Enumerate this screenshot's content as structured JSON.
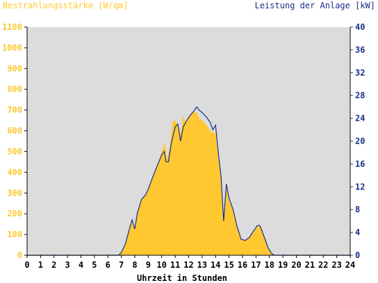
{
  "colors": {
    "irradiance": "#ffc830",
    "power": "#1a2f8a",
    "plot_background": "#dcdcdc",
    "axis": "#000000"
  },
  "chart_data": {
    "type": "area",
    "y_left_label": "Bestrahlungsstärke [W/qm]",
    "y_right_label": "Leistung der Anlage [kW]",
    "x_label": "Uhrzeit in Stunden",
    "x_range": [
      0,
      24
    ],
    "y_left_range": [
      0,
      1100
    ],
    "y_right_range": [
      0,
      40
    ],
    "x_ticks": [
      0,
      1,
      2,
      3,
      4,
      5,
      6,
      7,
      8,
      9,
      10,
      11,
      12,
      13,
      14,
      15,
      16,
      17,
      18,
      19,
      20,
      21,
      22,
      23,
      24
    ],
    "y_left_ticks": [
      0,
      100,
      200,
      300,
      400,
      500,
      600,
      700,
      800,
      900,
      1000,
      1100
    ],
    "y_right_ticks": [
      0,
      4,
      8,
      12,
      16,
      20,
      24,
      28,
      32,
      36,
      40
    ],
    "grid": false,
    "legend": "none",
    "series": [
      {
        "name": "Bestrahlungsstärke [W/qm]",
        "axis": "left",
        "type": "area",
        "points": [
          [
            0,
            0
          ],
          [
            6.7,
            0
          ],
          [
            7.0,
            15
          ],
          [
            7.3,
            60
          ],
          [
            7.6,
            130
          ],
          [
            7.8,
            170
          ],
          [
            8.0,
            120
          ],
          [
            8.2,
            200
          ],
          [
            8.5,
            270
          ],
          [
            8.8,
            290
          ],
          [
            9.0,
            320
          ],
          [
            9.3,
            370
          ],
          [
            9.6,
            420
          ],
          [
            10.0,
            500
          ],
          [
            10.2,
            540
          ],
          [
            10.4,
            460
          ],
          [
            10.6,
            520
          ],
          [
            10.8,
            640
          ],
          [
            11.0,
            650
          ],
          [
            11.2,
            630
          ],
          [
            11.4,
            580
          ],
          [
            11.6,
            670
          ],
          [
            11.8,
            640
          ],
          [
            12.0,
            660
          ],
          [
            12.3,
            690
          ],
          [
            12.6,
            690
          ],
          [
            12.8,
            660
          ],
          [
            13.0,
            650
          ],
          [
            13.3,
            630
          ],
          [
            13.6,
            600
          ],
          [
            13.8,
            590
          ],
          [
            14.0,
            590
          ],
          [
            14.2,
            470
          ],
          [
            14.4,
            380
          ],
          [
            14.6,
            170
          ],
          [
            14.8,
            330
          ],
          [
            15.0,
            260
          ],
          [
            15.3,
            220
          ],
          [
            15.6,
            130
          ],
          [
            15.9,
            75
          ],
          [
            16.2,
            70
          ],
          [
            16.5,
            85
          ],
          [
            16.8,
            110
          ],
          [
            17.1,
            140
          ],
          [
            17.3,
            140
          ],
          [
            17.6,
            90
          ],
          [
            17.9,
            40
          ],
          [
            18.2,
            5
          ],
          [
            18.4,
            0
          ],
          [
            24,
            0
          ]
        ]
      },
      {
        "name": "Leistung der Anlage [kW]",
        "axis": "right",
        "type": "line",
        "points": [
          [
            0,
            0
          ],
          [
            6.8,
            0
          ],
          [
            7.0,
            0.5
          ],
          [
            7.3,
            2.0
          ],
          [
            7.6,
            4.6
          ],
          [
            7.8,
            6.2
          ],
          [
            8.0,
            4.6
          ],
          [
            8.2,
            7.5
          ],
          [
            8.5,
            9.8
          ],
          [
            8.8,
            10.6
          ],
          [
            9.0,
            11.6
          ],
          [
            9.3,
            13.5
          ],
          [
            9.6,
            15.3
          ],
          [
            10.0,
            17.6
          ],
          [
            10.2,
            18.2
          ],
          [
            10.3,
            16.4
          ],
          [
            10.5,
            16.4
          ],
          [
            10.7,
            19.5
          ],
          [
            11.0,
            22.5
          ],
          [
            11.2,
            23.0
          ],
          [
            11.4,
            20.0
          ],
          [
            11.6,
            22.5
          ],
          [
            11.8,
            23.4
          ],
          [
            12.1,
            24.5
          ],
          [
            12.4,
            25.3
          ],
          [
            12.6,
            26.0
          ],
          [
            12.8,
            25.4
          ],
          [
            13.0,
            25.0
          ],
          [
            13.3,
            24.3
          ],
          [
            13.6,
            23.3
          ],
          [
            13.8,
            22.0
          ],
          [
            14.0,
            22.8
          ],
          [
            14.2,
            18.0
          ],
          [
            14.4,
            14.0
          ],
          [
            14.6,
            6.0
          ],
          [
            14.8,
            12.5
          ],
          [
            15.0,
            10.0
          ],
          [
            15.3,
            8.0
          ],
          [
            15.6,
            5.0
          ],
          [
            15.9,
            2.8
          ],
          [
            16.2,
            2.6
          ],
          [
            16.5,
            3.1
          ],
          [
            16.8,
            4.2
          ],
          [
            17.1,
            5.2
          ],
          [
            17.3,
            5.2
          ],
          [
            17.6,
            3.3
          ],
          [
            17.9,
            1.3
          ],
          [
            18.2,
            0.2
          ],
          [
            18.4,
            0
          ],
          [
            24,
            0
          ]
        ]
      }
    ]
  }
}
